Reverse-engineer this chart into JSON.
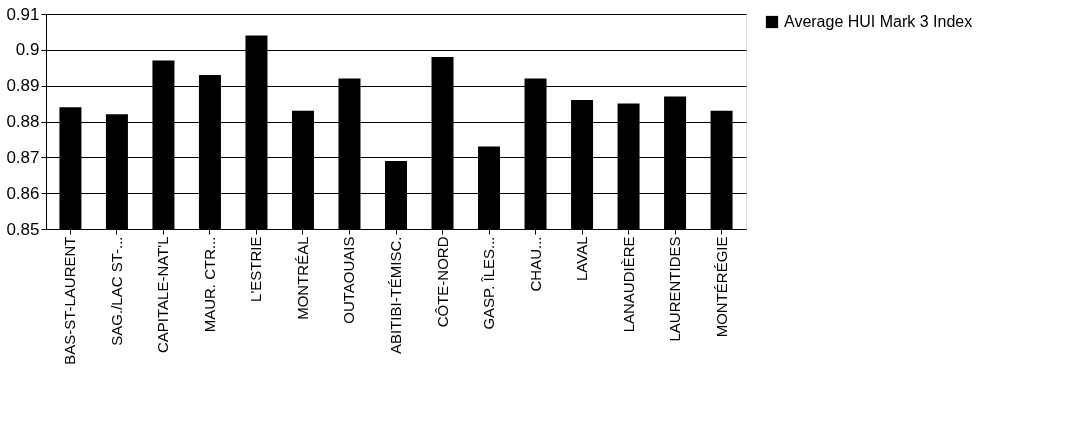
{
  "chart_data": {
    "type": "bar",
    "categories": [
      "BAS-ST-LAURENT",
      "SAG./LAC ST-...",
      "CAPITALE-NAT'L",
      "MAUR. CTR...",
      "L'ESTRIE",
      "MONTRÉAL",
      "OUTAOUAIS",
      "ABITIBI-TÉMISC.",
      "CÔTE-NORD",
      "GASP. ÎLES...",
      "CHAU...",
      "LAVAL",
      "LANAUDIÈRE",
      "LAURENTIDES",
      "MONTÉRÉGIE"
    ],
    "series": [
      {
        "name": "Average HUI Mark 3 Index",
        "color": "#000000",
        "values": [
          0.884,
          0.882,
          0.897,
          0.893,
          0.904,
          0.883,
          0.892,
          0.869,
          0.898,
          0.873,
          0.892,
          0.886,
          0.885,
          0.887,
          0.883
        ]
      }
    ],
    "ylim": [
      0.85,
      0.91
    ],
    "yticks": [
      0.85,
      0.86,
      0.87,
      0.88,
      0.89,
      {
        "value": 0.9,
        "label": "0.9"
      },
      0.91
    ],
    "grid": "y",
    "legend": "right"
  }
}
